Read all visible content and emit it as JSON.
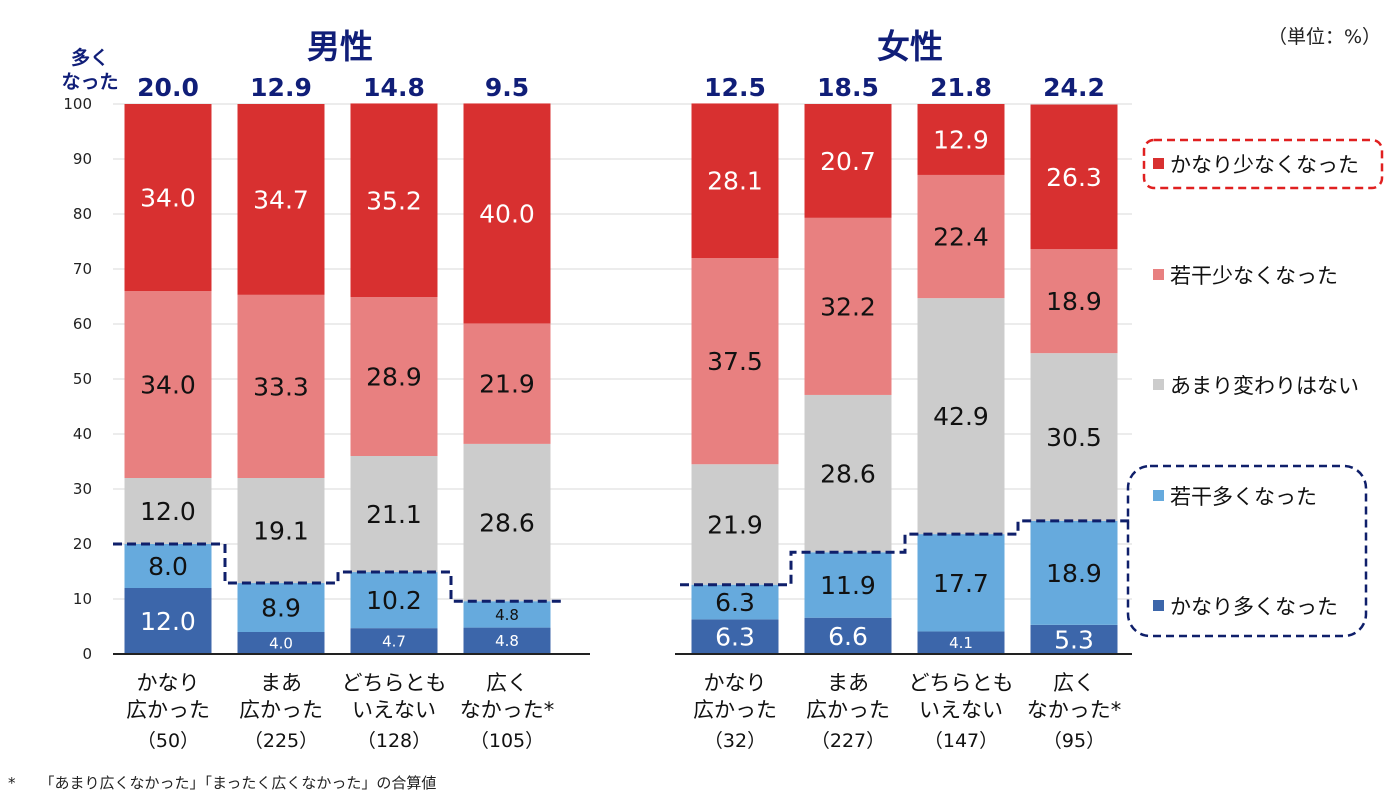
{
  "unit_label": "（単位：%）",
  "footnote": {
    "marker": "*",
    "text": "「あまり広くなかった」「まったく広くなかった」の合算値"
  },
  "colors": {
    "かなり少なくなった": "#d83030",
    "若干少なくなった": "#e88080",
    "あまり変わりはない": "#cccccc",
    "若干多くなった": "#66aadd",
    "かなり多くなった": "#3c66aa",
    "title": "#101e78",
    "red_outline": "#e02020",
    "navy_outline": "#0f1f6a"
  },
  "chart_data": {
    "type": "bar",
    "stacked": true,
    "ylim": [
      0,
      100
    ],
    "yticks": [
      0,
      10,
      20,
      30,
      40,
      50,
      60,
      70,
      80,
      90,
      100
    ],
    "grid": true,
    "legend_position": "right",
    "top_label_header": "多く\nなった",
    "groups": [
      {
        "title": "男性",
        "categories": [
          {
            "label": "かなり\n広かった",
            "n": "（50）"
          },
          {
            "label": "まあ\n広かった",
            "n": "（225）"
          },
          {
            "label": "どちらとも\nいえない",
            "n": "（128）"
          },
          {
            "label": "広く\nなかった*",
            "n": "（105）"
          }
        ],
        "top_labels": [
          "20.0",
          "12.9",
          "14.8",
          "9.5"
        ]
      },
      {
        "title": "女性",
        "categories": [
          {
            "label": "かなり\n広かった",
            "n": "（32）"
          },
          {
            "label": "まあ\n広かった",
            "n": "（227）"
          },
          {
            "label": "どちらとも\nいえない",
            "n": "（147）"
          },
          {
            "label": "広く\nなかった*",
            "n": "（95）"
          }
        ],
        "top_labels": [
          "12.5",
          "18.5",
          "21.8",
          "24.2"
        ]
      }
    ],
    "series": [
      {
        "name": "かなり多くなった",
        "values": [
          12.0,
          4.0,
          4.7,
          4.8,
          6.3,
          6.6,
          4.1,
          5.3
        ]
      },
      {
        "name": "若干多くなった",
        "values": [
          8.0,
          8.9,
          10.2,
          4.8,
          6.3,
          11.9,
          17.7,
          18.9
        ]
      },
      {
        "name": "あまり変わりはない",
        "values": [
          12.0,
          19.1,
          21.1,
          28.6,
          21.9,
          28.6,
          42.9,
          30.5
        ]
      },
      {
        "name": "若干少なくなった",
        "values": [
          34.0,
          33.3,
          28.9,
          21.9,
          37.5,
          32.2,
          22.4,
          18.9
        ]
      },
      {
        "name": "かなり少なくなった",
        "values": [
          34.0,
          34.7,
          35.2,
          40.0,
          28.1,
          20.7,
          12.9,
          26.3
        ]
      }
    ],
    "legend_order": [
      "かなり少なくなった",
      "若干少なくなった",
      "あまり変わりはない",
      "若干多くなった",
      "かなり多くなった"
    ]
  }
}
